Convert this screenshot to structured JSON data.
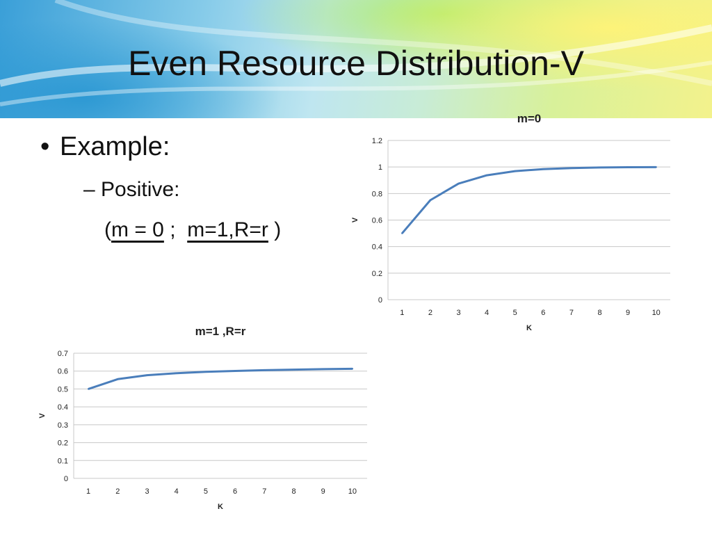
{
  "slide": {
    "title": "Even Resource Distribution-V",
    "bullet1": "Example:",
    "bullet2": "Positive:",
    "paren_open": "(",
    "term1": "m = 0",
    "separator": " ;  ",
    "term2": "m=1,R=r",
    "paren_close": " )",
    "bullet_glyph": "•",
    "dash_glyph": "–"
  },
  "colors": {
    "series_line": "#4a7ebb",
    "grid": "#c8c8c8",
    "text": "#222222"
  },
  "chart_data": [
    {
      "type": "line",
      "title": "m=0",
      "xlabel": "K",
      "ylabel": "V",
      "categories": [
        "1",
        "2",
        "3",
        "4",
        "5",
        "6",
        "7",
        "8",
        "9",
        "10"
      ],
      "series": [
        {
          "values": [
            0.5,
            0.75,
            0.875,
            0.9375,
            0.96875,
            0.984,
            0.992,
            0.996,
            0.998,
            0.999
          ]
        }
      ],
      "ylim": [
        0,
        1.2
      ],
      "yticks": [
        "0",
        "0.2",
        "0.4",
        "0.6",
        "0.8",
        "1",
        "1.2"
      ],
      "grid": true,
      "legend": "none"
    },
    {
      "type": "line",
      "title": "m=1 ,R=r",
      "xlabel": "K",
      "ylabel": "V",
      "categories": [
        "1",
        "2",
        "3",
        "4",
        "5",
        "6",
        "7",
        "8",
        "9",
        "10"
      ],
      "series": [
        {
          "values": [
            0.5,
            0.555,
            0.577,
            0.588,
            0.596,
            0.601,
            0.605,
            0.608,
            0.611,
            0.613
          ]
        }
      ],
      "ylim": [
        0,
        0.7
      ],
      "yticks": [
        "0",
        "0.1",
        "0.2",
        "0.3",
        "0.4",
        "0.5",
        "0.6",
        "0.7"
      ],
      "grid": true,
      "legend": "none"
    }
  ]
}
